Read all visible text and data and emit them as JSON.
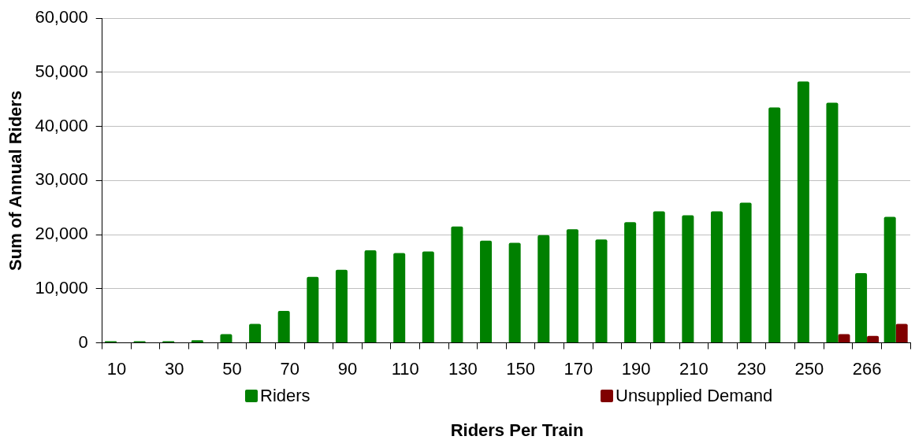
{
  "chart_data": {
    "type": "bar",
    "xlabel": "Riders Per Train",
    "ylabel": "Sum of Annual Riders",
    "categories": [
      "10",
      null,
      "30",
      null,
      "50",
      null,
      "70",
      null,
      "90",
      null,
      "110",
      null,
      "130",
      null,
      "150",
      null,
      "170",
      null,
      "190",
      null,
      "210",
      null,
      "230",
      null,
      "250",
      null,
      "266",
      null
    ],
    "series": [
      {
        "name": "Riders",
        "color": "#008000",
        "values": [
          300,
          300,
          300,
          500,
          1600,
          3500,
          5900,
          12200,
          13500,
          17100,
          16600,
          16900,
          21500,
          18900,
          18500,
          19900,
          21000,
          19100,
          22300,
          24300,
          23600,
          24300,
          25900,
          43500,
          48300,
          44400,
          12900,
          23300
        ]
      },
      {
        "name": "Unsupplied Demand",
        "color": "#800000",
        "values": [
          null,
          null,
          null,
          null,
          null,
          null,
          null,
          null,
          null,
          null,
          null,
          null,
          null,
          null,
          null,
          null,
          null,
          null,
          null,
          null,
          null,
          null,
          null,
          null,
          null,
          1600,
          1300,
          3500
        ]
      }
    ],
    "ylim": [
      0,
      60000
    ],
    "yticks": [
      0,
      {
        "value": 10000,
        "label": "10,000"
      },
      {
        "value": 20000,
        "label": "20,000"
      },
      {
        "value": 30000,
        "label": "30,000"
      },
      {
        "value": 40000,
        "label": "40,000"
      },
      {
        "value": 50000,
        "label": "50,000"
      },
      {
        "value": 60000,
        "label": "60,000"
      }
    ],
    "grid": "y",
    "legend": "bottom"
  }
}
